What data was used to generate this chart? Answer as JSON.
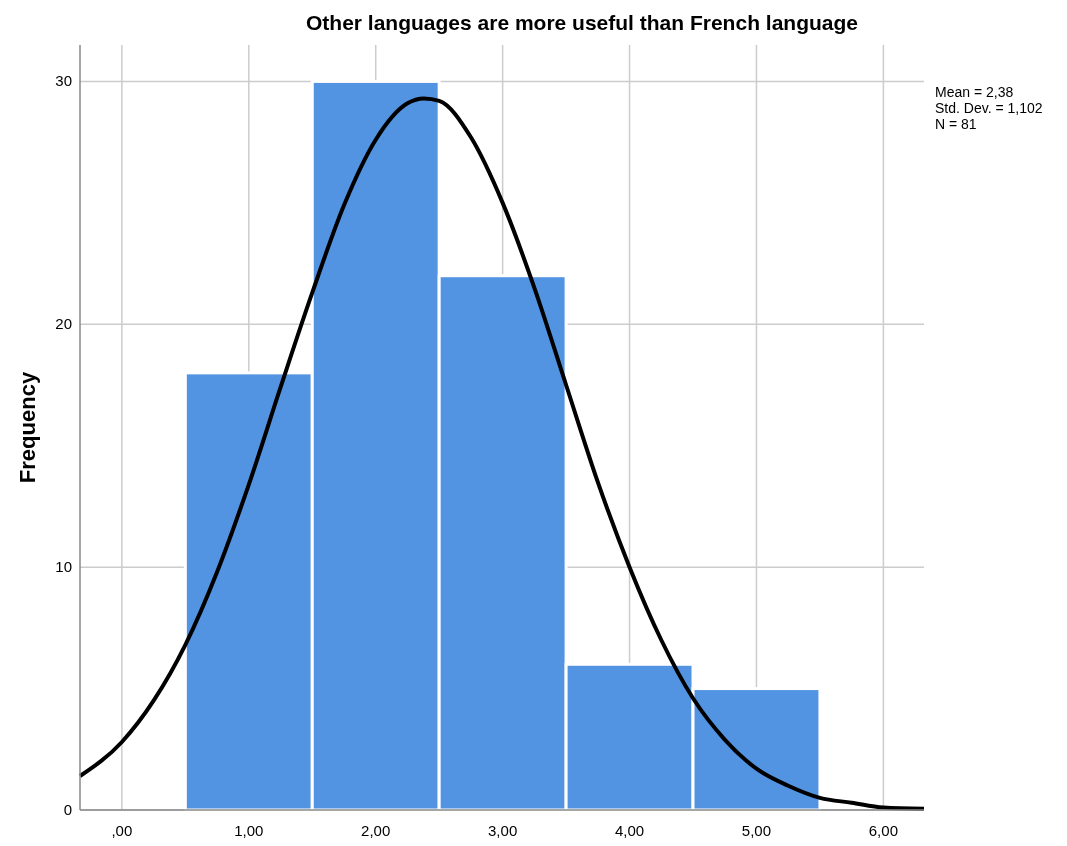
{
  "chart_data": {
    "type": "histogram",
    "title": "Other languages are more useful than French language",
    "ylabel": "Frequency",
    "bins": [
      0.5,
      1.5,
      2.5,
      3.5,
      4.5,
      5.5
    ],
    "values": [
      18,
      30,
      22,
      6,
      5
    ],
    "color": "#5294e2",
    "series": [
      {
        "type": "line",
        "color": "#000000",
        "x": [
          -0.33,
          0,
          0.25,
          0.5,
          0.75,
          1,
          1.25,
          1.5,
          1.75,
          2,
          2.25,
          2.38,
          2.5,
          2.75,
          3,
          3.25,
          3.5,
          3.75,
          4,
          4.25,
          4.5,
          4.75,
          5,
          5.25,
          5.5,
          5.75,
          6,
          6.32
        ],
        "values": [
          1.4,
          2.8,
          4.5,
          6.8,
          9.8,
          13.4,
          17.4,
          21.3,
          24.9,
          27.6,
          29.1,
          29.3,
          29.2,
          27.7,
          25.0,
          21.5,
          17.5,
          13.5,
          10.0,
          7.0,
          4.6,
          2.9,
          1.7,
          1.0,
          0.5,
          0.3,
          0.1,
          0.05
        ]
      }
    ],
    "xlim": [
      -0.33,
      6.32
    ],
    "ylim": [
      0,
      31.5
    ],
    "xticks": [
      {
        "value": 0,
        "label": ",00"
      },
      {
        "value": 1,
        "label": "1,00"
      },
      {
        "value": 2,
        "label": "2,00"
      },
      {
        "value": 3,
        "label": "3,00"
      },
      {
        "value": 4,
        "label": "4,00"
      },
      {
        "value": 5,
        "label": "5,00"
      },
      {
        "value": 6,
        "label": "6,00"
      }
    ],
    "yticks": [
      0,
      10,
      20,
      30
    ],
    "grid": true,
    "line_style": "solid",
    "marker": "none",
    "annotations": [
      "Mean = 2,38",
      "Std. Dev. = 1,102",
      "N = 81"
    ]
  }
}
